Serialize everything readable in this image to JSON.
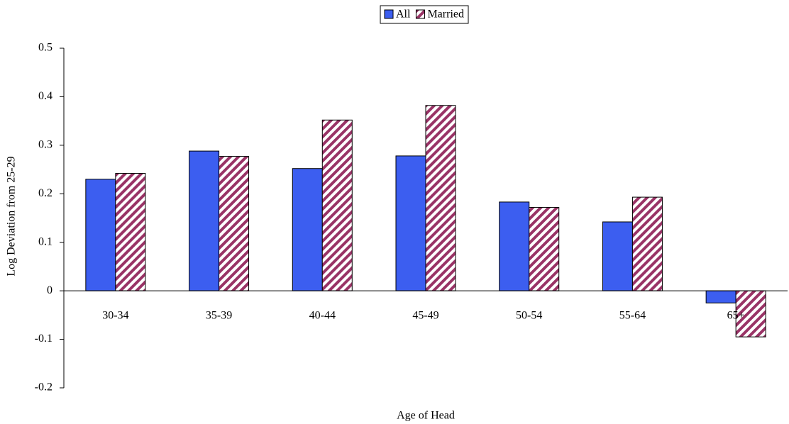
{
  "chart_data": {
    "type": "bar",
    "x_label": "Age of Head",
    "y_label": "Log Deviation from 25-29",
    "categories": [
      "30-34",
      "35-39",
      "40-44",
      "45-49",
      "50-54",
      "55-64",
      "65+"
    ],
    "series": [
      {
        "name": "All",
        "color": "#3c5ef0",
        "pattern": "solid",
        "values": [
          0.23,
          0.288,
          0.252,
          0.278,
          0.183,
          0.142,
          -0.025
        ]
      },
      {
        "name": "Married",
        "color": "#993366",
        "pattern": "diagonal-stripes",
        "values": [
          0.242,
          0.277,
          0.352,
          0.382,
          0.172,
          0.193,
          -0.095
        ]
      }
    ],
    "ylim": [
      -0.2,
      0.5
    ],
    "yticks": [
      -0.2,
      -0.1,
      0,
      0.1,
      0.2,
      0.3,
      0.4,
      0.5
    ],
    "grid": false,
    "legend": "top"
  }
}
